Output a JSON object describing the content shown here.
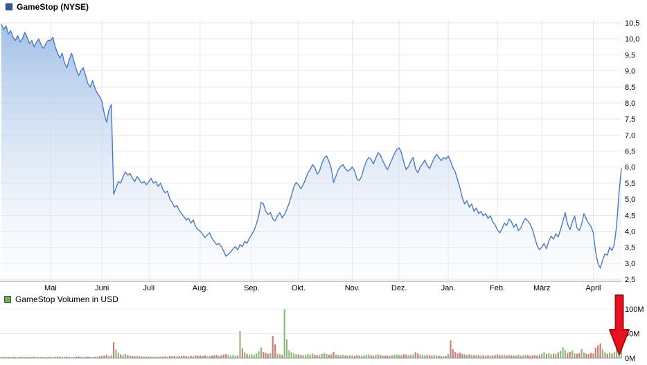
{
  "header": {
    "title": "GameStop (NYSE)",
    "marker_color": "#2d5e9e"
  },
  "volume_header": {
    "label": "GameStop Volumen in USD",
    "marker_color": "#71ae5b"
  },
  "colors": {
    "line": "#4a79c4",
    "area_top": "#9dbde6",
    "area_bottom": "#f4f8fd",
    "grid": "#e4e4e4",
    "axis": "#999999",
    "volume_up": "#8cbc77",
    "volume_down": "#cd7d79",
    "annotation_arrow": "#e8131f",
    "annotation_arrow_border": "#a50b12"
  },
  "chart_data": [
    {
      "type": "line",
      "name": "price",
      "title": "GameStop (NYSE)",
      "xlabel": "",
      "ylabel": "",
      "ylim": [
        2.5,
        10.5
      ],
      "grid": true,
      "line_color": "#4a79c4",
      "fill_top": "#9dbde6",
      "fill_bottom": "#f4f8fd",
      "grid_color": "#e4e4e4",
      "y_ticks": [
        {
          "v": 10.5,
          "label": "10,5"
        },
        {
          "v": 10.0,
          "label": "10,0"
        },
        {
          "v": 9.5,
          "label": "9,5"
        },
        {
          "v": 9.0,
          "label": "9,0"
        },
        {
          "v": 8.5,
          "label": "8,5"
        },
        {
          "v": 8.0,
          "label": "8,0"
        },
        {
          "v": 7.5,
          "label": "7,5"
        },
        {
          "v": 7.0,
          "label": "7,0"
        },
        {
          "v": 6.5,
          "label": "6,5"
        },
        {
          "v": 6.0,
          "label": "6,0"
        },
        {
          "v": 5.5,
          "label": "5,5"
        },
        {
          "v": 5.0,
          "label": "5,0"
        },
        {
          "v": 4.5,
          "label": "4,5"
        },
        {
          "v": 4.0,
          "label": "4,0"
        },
        {
          "v": 3.5,
          "label": "3,5"
        },
        {
          "v": 3.0,
          "label": "3,0"
        },
        {
          "v": 2.5,
          "label": "2,5"
        }
      ],
      "x_ticks": [
        {
          "label": "Mai",
          "index": 21
        },
        {
          "label": "Juni",
          "index": 43
        },
        {
          "label": "Juli",
          "index": 63
        },
        {
          "label": "Aug.",
          "index": 85
        },
        {
          "label": "Sep.",
          "index": 107
        },
        {
          "label": "Okt.",
          "index": 127
        },
        {
          "label": "Nov.",
          "index": 150
        },
        {
          "label": "Dez.",
          "index": 170
        },
        {
          "label": "Jan.",
          "index": 191
        },
        {
          "label": "Feb.",
          "index": 212
        },
        {
          "label": "März",
          "index": 231
        },
        {
          "label": "April",
          "index": 253
        }
      ],
      "values": [
        10.45,
        10.3,
        10.4,
        10.15,
        10.25,
        10.05,
        9.95,
        10.1,
        9.9,
        10.0,
        10.2,
        10.05,
        9.85,
        9.95,
        9.75,
        9.9,
        10.0,
        9.8,
        9.7,
        9.85,
        9.95,
        9.95,
        10.05,
        9.75,
        9.55,
        9.4,
        9.55,
        9.25,
        9.1,
        9.35,
        9.55,
        9.3,
        9.05,
        8.85,
        9.0,
        9.1,
        8.85,
        8.6,
        8.5,
        8.7,
        8.45,
        8.3,
        8.2,
        8.05,
        7.65,
        7.4,
        7.8,
        7.95,
        5.15,
        5.35,
        5.55,
        5.5,
        5.7,
        5.85,
        5.75,
        5.8,
        5.65,
        5.55,
        5.7,
        5.6,
        5.5,
        5.55,
        5.45,
        5.55,
        5.65,
        5.5,
        5.55,
        5.4,
        5.5,
        5.3,
        5.2,
        5.25,
        5.0,
        4.9,
        4.75,
        4.8,
        4.65,
        4.55,
        4.45,
        4.35,
        4.4,
        4.25,
        4.35,
        4.15,
        4.05,
        4.0,
        3.9,
        3.8,
        3.88,
        3.95,
        3.78,
        3.68,
        3.58,
        3.62,
        3.52,
        3.38,
        3.22,
        3.28,
        3.35,
        3.45,
        3.52,
        3.42,
        3.58,
        3.52,
        3.68,
        3.62,
        3.78,
        3.9,
        4.02,
        4.22,
        4.48,
        4.9,
        4.85,
        4.62,
        4.52,
        4.58,
        4.38,
        4.32,
        4.48,
        4.58,
        4.42,
        4.52,
        4.68,
        4.88,
        5.12,
        5.38,
        5.52,
        5.45,
        5.32,
        5.45,
        5.62,
        5.82,
        5.92,
        6.08,
        5.98,
        5.78,
        5.88,
        6.12,
        6.28,
        6.35,
        6.18,
        5.95,
        5.52,
        5.72,
        5.92,
        6.02,
        6.08,
        5.95,
        5.88,
        5.92,
        6.0,
        5.88,
        5.62,
        5.58,
        5.72,
        5.98,
        6.18,
        6.3,
        6.25,
        6.1,
        6.28,
        6.45,
        6.38,
        6.2,
        6.05,
        5.92,
        6.08,
        6.25,
        6.42,
        6.55,
        6.6,
        6.45,
        6.15,
        5.92,
        6.02,
        6.18,
        6.3,
        5.95,
        5.82,
        6.0,
        6.1,
        6.22,
        6.05,
        5.95,
        6.12,
        6.28,
        6.4,
        6.3,
        6.2,
        6.3,
        6.25,
        6.35,
        6.18,
        5.98,
        5.85,
        5.6,
        5.35,
        5.05,
        4.85,
        4.95,
        4.75,
        4.85,
        4.62,
        4.72,
        4.55,
        4.62,
        4.48,
        4.55,
        4.4,
        4.48,
        4.3,
        4.2,
        4.05,
        3.95,
        4.08,
        4.25,
        4.18,
        4.38,
        4.3,
        4.12,
        4.22,
        4.02,
        4.1,
        4.28,
        4.4,
        4.32,
        4.22,
        4.05,
        3.8,
        3.55,
        3.42,
        3.5,
        3.62,
        3.45,
        3.7,
        3.85,
        3.75,
        3.92,
        3.82,
        4.05,
        4.3,
        4.58,
        4.22,
        4.05,
        4.28,
        4.48,
        4.12,
        4.02,
        4.22,
        4.55,
        4.38,
        4.25,
        4.15,
        3.95,
        3.35,
        3.0,
        2.85,
        3.1,
        3.3,
        3.25,
        3.5,
        3.4,
        3.6,
        4.2,
        5.2,
        5.95
      ]
    },
    {
      "type": "bar",
      "name": "volume",
      "title": "GameStop Volumen in USD",
      "unit": "millions USD",
      "ylim": [
        0,
        105
      ],
      "up_color": "#8cbc77",
      "down_color": "#cd7d79",
      "y_ticks": [
        {
          "v": 100,
          "label": "100M"
        },
        {
          "v": 50,
          "label": "50M"
        },
        {
          "v": 0,
          "label": "0M"
        }
      ],
      "values": [
        2.6,
        2.2,
        2.8,
        2.4,
        2.0,
        2.5,
        2.2,
        1.9,
        2.4,
        2.8,
        2.3,
        2.0,
        2.6,
        2.2,
        2.9,
        2.4,
        2.1,
        2.5,
        2.3,
        2.0,
        2.7,
        2.8,
        2.2,
        2.5,
        3.4,
        2.6,
        2.1,
        2.4,
        3.1,
        2.2,
        2.0,
        2.3,
        2.8,
        3.5,
        2.4,
        2.1,
        2.6,
        3.2,
        2.7,
        2.3,
        3.0,
        2.5,
        3.8,
        4.5,
        5.2,
        6.8,
        4.2,
        5.5,
        32.0,
        17.5,
        11.0,
        7.5,
        6.2,
        8.5,
        5.8,
        4.6,
        4.1,
        3.8,
        4.4,
        3.6,
        3.2,
        3.5,
        3.0,
        3.4,
        2.8,
        2.5,
        3.0,
        2.6,
        3.3,
        2.9,
        3.6,
        2.7,
        4.2,
        3.8,
        4.6,
        3.2,
        3.9,
        4.4,
        5.1,
        4.0,
        3.4,
        4.8,
        3.6,
        5.4,
        4.2,
        5.0,
        4.4,
        5.6,
        3.8,
        4.2,
        4.8,
        5.5,
        6.4,
        4.6,
        5.8,
        7.2,
        8.4,
        6.0,
        5.2,
        6.6,
        4.8,
        5.4,
        55.0,
        20.0,
        12.0,
        8.5,
        7.0,
        8.2,
        6.4,
        9.5,
        14.0,
        22.0,
        12.5,
        10.5,
        8.4,
        9.8,
        45.0,
        28.0,
        9.0,
        8.0,
        6.6,
        100.0,
        38.0,
        16.0,
        12.0,
        9.4,
        8.2,
        7.4,
        6.2,
        5.8,
        6.6,
        8.2,
        7.0,
        9.4,
        6.8,
        5.6,
        6.0,
        8.8,
        10.2,
        8.4,
        6.6,
        7.8,
        12.4,
        7.2,
        6.4,
        5.8,
        6.6,
        5.4,
        5.0,
        5.6,
        5.2,
        4.6,
        6.4,
        5.0,
        4.4,
        5.8,
        6.6,
        7.4,
        5.6,
        4.8,
        6.2,
        7.8,
        6.0,
        5.2,
        4.6,
        5.4,
        4.8,
        5.6,
        6.8,
        7.6,
        6.4,
        5.6,
        8.2,
        7.0,
        5.8,
        6.6,
        7.4,
        12.0,
        9.5,
        7.2,
        6.4,
        5.6,
        6.2,
        5.8,
        5.2,
        6.0,
        5.4,
        4.8,
        4.2,
        3.8,
        4.4,
        8.4,
        36.0,
        18.0,
        12.6,
        9.4,
        11.2,
        8.6,
        7.4,
        6.8,
        7.6,
        6.2,
        5.6,
        6.4,
        5.8,
        5.2,
        5.8,
        5.0,
        5.6,
        4.8,
        5.4,
        6.0,
        7.2,
        6.4,
        5.6,
        6.8,
        5.4,
        6.2,
        5.6,
        4.8,
        5.4,
        6.6,
        5.0,
        5.8,
        6.4,
        5.6,
        4.8,
        5.4,
        6.0,
        5.2,
        6.6,
        9.4,
        12.2,
        8.6,
        10.4,
        7.8,
        9.2,
        8.4,
        11.6,
        14.5,
        22.0,
        16.0,
        10.5,
        12.8,
        15.5,
        9.6,
        8.8,
        10.2,
        18.5,
        11.4,
        9.0,
        8.2,
        10.6,
        9.5,
        21.0,
        26.0,
        30.0,
        18.0,
        12.0,
        9.0,
        11.5,
        9.5,
        12.5,
        20.0,
        38.0,
        62.0
      ]
    }
  ],
  "annotations": {
    "red_arrow": {
      "shape": "arrow-down",
      "color": "#e8131f",
      "border": "#a50b12"
    }
  }
}
